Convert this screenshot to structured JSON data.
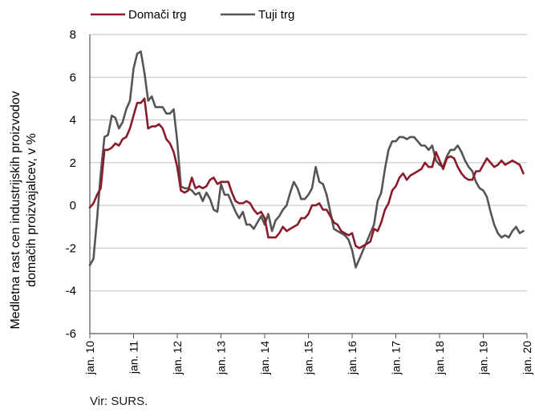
{
  "chart_data": {
    "type": "line",
    "ylabel_line1": "Medletna rast cen industrijskih proizvodov",
    "ylabel_line2": "domačih proizvajalcev, v %",
    "ylim": [
      -6,
      8
    ],
    "yticks": [
      "8",
      "6",
      "4",
      "2",
      "0",
      "-2",
      "-4",
      "-6"
    ],
    "x_range": [
      "2010-01",
      "2020-01"
    ],
    "xticks": [
      "jan. 10",
      "jan. 11",
      "jan. 12",
      "jan. 13",
      "jan. 14",
      "jan. 15",
      "jan. 16",
      "jan. 17",
      "jan. 18",
      "jan. 19",
      "jan. 20"
    ],
    "legend_position": "top-left",
    "grid": "horizontal",
    "series": [
      {
        "name": "Domači trg",
        "color": "#8b1a2b",
        "points": [
          [
            "2010-01",
            -0.1
          ],
          [
            "2010-02",
            0.1
          ],
          [
            "2010-03",
            0.5
          ],
          [
            "2010-04",
            0.8
          ],
          [
            "2010-05",
            2.6
          ],
          [
            "2010-06",
            2.6
          ],
          [
            "2010-07",
            2.7
          ],
          [
            "2010-08",
            2.9
          ],
          [
            "2010-09",
            2.8
          ],
          [
            "2010-10",
            3.1
          ],
          [
            "2010-11",
            3.2
          ],
          [
            "2010-12",
            3.6
          ],
          [
            "2011-01",
            4.2
          ],
          [
            "2011-02",
            4.8
          ],
          [
            "2011-03",
            4.8
          ],
          [
            "2011-04",
            5.0
          ],
          [
            "2011-05",
            3.6
          ],
          [
            "2011-06",
            3.7
          ],
          [
            "2011-07",
            3.7
          ],
          [
            "2011-08",
            3.8
          ],
          [
            "2011-09",
            3.6
          ],
          [
            "2011-10",
            3.1
          ],
          [
            "2011-11",
            2.9
          ],
          [
            "2011-12",
            2.5
          ],
          [
            "2012-01",
            1.8
          ],
          [
            "2012-02",
            0.7
          ],
          [
            "2012-03",
            0.6
          ],
          [
            "2012-04",
            0.7
          ],
          [
            "2012-05",
            1.3
          ],
          [
            "2012-06",
            0.8
          ],
          [
            "2012-07",
            0.9
          ],
          [
            "2012-08",
            0.8
          ],
          [
            "2012-09",
            0.9
          ],
          [
            "2012-10",
            1.2
          ],
          [
            "2012-11",
            1.3
          ],
          [
            "2012-12",
            1.0
          ],
          [
            "2013-01",
            1.1
          ],
          [
            "2013-02",
            1.1
          ],
          [
            "2013-03",
            1.1
          ],
          [
            "2013-04",
            0.6
          ],
          [
            "2013-05",
            0.2
          ],
          [
            "2013-06",
            0.1
          ],
          [
            "2013-07",
            0.1
          ],
          [
            "2013-08",
            0.2
          ],
          [
            "2013-09",
            0.1
          ],
          [
            "2013-10",
            -0.2
          ],
          [
            "2013-11",
            -0.4
          ],
          [
            "2013-12",
            -0.3
          ],
          [
            "2014-01",
            -0.6
          ],
          [
            "2014-02",
            -1.5
          ],
          [
            "2014-03",
            -1.5
          ],
          [
            "2014-04",
            -1.5
          ],
          [
            "2014-05",
            -1.3
          ],
          [
            "2014-06",
            -1.0
          ],
          [
            "2014-07",
            -1.2
          ],
          [
            "2014-08",
            -1.1
          ],
          [
            "2014-09",
            -1.0
          ],
          [
            "2014-10",
            -0.9
          ],
          [
            "2014-11",
            -0.6
          ],
          [
            "2014-12",
            -0.6
          ],
          [
            "2015-01",
            -0.4
          ],
          [
            "2015-02",
            0.0
          ],
          [
            "2015-03",
            0.0
          ],
          [
            "2015-04",
            0.1
          ],
          [
            "2015-05",
            -0.2
          ],
          [
            "2015-06",
            -0.2
          ],
          [
            "2015-07",
            -0.5
          ],
          [
            "2015-08",
            -0.8
          ],
          [
            "2015-09",
            -0.9
          ],
          [
            "2015-10",
            -1.2
          ],
          [
            "2015-11",
            -1.3
          ],
          [
            "2015-12",
            -1.4
          ],
          [
            "2016-01",
            -1.3
          ],
          [
            "2016-02",
            -1.9
          ],
          [
            "2016-03",
            -2.0
          ],
          [
            "2016-04",
            -1.9
          ],
          [
            "2016-05",
            -1.8
          ],
          [
            "2016-06",
            -1.7
          ],
          [
            "2016-07",
            -1.1
          ],
          [
            "2016-08",
            -1.2
          ],
          [
            "2016-09",
            -0.8
          ],
          [
            "2016-10",
            -0.2
          ],
          [
            "2016-11",
            0.1
          ],
          [
            "2016-12",
            0.7
          ],
          [
            "2017-01",
            0.9
          ],
          [
            "2017-02",
            1.3
          ],
          [
            "2017-03",
            1.5
          ],
          [
            "2017-04",
            1.2
          ],
          [
            "2017-05",
            1.4
          ],
          [
            "2017-06",
            1.5
          ],
          [
            "2017-07",
            1.6
          ],
          [
            "2017-08",
            1.7
          ],
          [
            "2017-09",
            2.0
          ],
          [
            "2017-10",
            1.8
          ],
          [
            "2017-11",
            1.8
          ],
          [
            "2017-12",
            2.5
          ],
          [
            "2018-01",
            2.1
          ],
          [
            "2018-02",
            1.7
          ],
          [
            "2018-03",
            2.2
          ],
          [
            "2018-04",
            2.3
          ],
          [
            "2018-05",
            2.2
          ],
          [
            "2018-06",
            1.8
          ],
          [
            "2018-07",
            1.5
          ],
          [
            "2018-08",
            1.3
          ],
          [
            "2018-09",
            1.2
          ],
          [
            "2018-10",
            1.2
          ],
          [
            "2018-11",
            1.6
          ],
          [
            "2018-12",
            1.6
          ],
          [
            "2019-01",
            1.9
          ],
          [
            "2019-02",
            2.2
          ],
          [
            "2019-03",
            2.0
          ],
          [
            "2019-04",
            1.8
          ],
          [
            "2019-05",
            1.9
          ],
          [
            "2019-06",
            2.1
          ],
          [
            "2019-07",
            1.9
          ],
          [
            "2019-08",
            2.0
          ],
          [
            "2019-09",
            2.1
          ],
          [
            "2019-10",
            2.0
          ],
          [
            "2019-11",
            1.9
          ],
          [
            "2019-12",
            1.5
          ]
        ]
      },
      {
        "name": "Tuji trg",
        "color": "#555555",
        "points": [
          [
            "2010-01",
            -2.8
          ],
          [
            "2010-02",
            -2.5
          ],
          [
            "2010-03",
            -0.6
          ],
          [
            "2010-04",
            1.5
          ],
          [
            "2010-05",
            3.2
          ],
          [
            "2010-06",
            3.3
          ],
          [
            "2010-07",
            4.2
          ],
          [
            "2010-08",
            4.1
          ],
          [
            "2010-09",
            3.6
          ],
          [
            "2010-10",
            3.9
          ],
          [
            "2010-11",
            4.5
          ],
          [
            "2010-12",
            4.9
          ],
          [
            "2011-01",
            6.4
          ],
          [
            "2011-02",
            7.1
          ],
          [
            "2011-03",
            7.2
          ],
          [
            "2011-04",
            6.2
          ],
          [
            "2011-05",
            4.9
          ],
          [
            "2011-06",
            5.1
          ],
          [
            "2011-07",
            4.6
          ],
          [
            "2011-08",
            4.6
          ],
          [
            "2011-09",
            4.6
          ],
          [
            "2011-10",
            4.3
          ],
          [
            "2011-11",
            4.3
          ],
          [
            "2011-12",
            4.5
          ],
          [
            "2012-01",
            3.0
          ],
          [
            "2012-02",
            0.9
          ],
          [
            "2012-03",
            0.8
          ],
          [
            "2012-04",
            0.8
          ],
          [
            "2012-05",
            0.7
          ],
          [
            "2012-06",
            0.5
          ],
          [
            "2012-07",
            0.6
          ],
          [
            "2012-08",
            0.2
          ],
          [
            "2012-09",
            0.6
          ],
          [
            "2012-10",
            0.3
          ],
          [
            "2012-11",
            -0.2
          ],
          [
            "2012-12",
            -0.3
          ],
          [
            "2013-01",
            1.0
          ],
          [
            "2013-02",
            0.5
          ],
          [
            "2013-03",
            0.5
          ],
          [
            "2013-04",
            0.1
          ],
          [
            "2013-05",
            -0.3
          ],
          [
            "2013-06",
            -0.6
          ],
          [
            "2013-07",
            -0.3
          ],
          [
            "2013-08",
            -0.9
          ],
          [
            "2013-09",
            -0.9
          ],
          [
            "2013-10",
            -1.1
          ],
          [
            "2013-11",
            -0.8
          ],
          [
            "2013-12",
            -0.5
          ],
          [
            "2014-01",
            -0.9
          ],
          [
            "2014-02",
            -0.4
          ],
          [
            "2014-03",
            -1.2
          ],
          [
            "2014-04",
            -0.7
          ],
          [
            "2014-05",
            -0.5
          ],
          [
            "2014-06",
            -0.2
          ],
          [
            "2014-07",
            0.0
          ],
          [
            "2014-08",
            0.6
          ],
          [
            "2014-09",
            1.1
          ],
          [
            "2014-10",
            0.8
          ],
          [
            "2014-11",
            0.3
          ],
          [
            "2014-12",
            0.3
          ],
          [
            "2015-01",
            0.5
          ],
          [
            "2015-02",
            0.8
          ],
          [
            "2015-03",
            1.8
          ],
          [
            "2015-04",
            1.1
          ],
          [
            "2015-05",
            1.0
          ],
          [
            "2015-06",
            0.5
          ],
          [
            "2015-07",
            -0.3
          ],
          [
            "2015-08",
            -1.1
          ],
          [
            "2015-09",
            -1.2
          ],
          [
            "2015-10",
            -1.3
          ],
          [
            "2015-11",
            -1.4
          ],
          [
            "2015-12",
            -1.6
          ],
          [
            "2016-01",
            -2.1
          ],
          [
            "2016-02",
            -2.9
          ],
          [
            "2016-03",
            -2.5
          ],
          [
            "2016-04",
            -2.1
          ],
          [
            "2016-05",
            -1.7
          ],
          [
            "2016-06",
            -1.3
          ],
          [
            "2016-07",
            -0.9
          ],
          [
            "2016-08",
            0.2
          ],
          [
            "2016-09",
            0.6
          ],
          [
            "2016-10",
            1.7
          ],
          [
            "2016-11",
            2.6
          ],
          [
            "2016-12",
            3.0
          ],
          [
            "2017-01",
            3.0
          ],
          [
            "2017-02",
            3.2
          ],
          [
            "2017-03",
            3.2
          ],
          [
            "2017-04",
            3.1
          ],
          [
            "2017-05",
            3.2
          ],
          [
            "2017-06",
            3.2
          ],
          [
            "2017-07",
            3.0
          ],
          [
            "2017-08",
            2.8
          ],
          [
            "2017-09",
            2.8
          ],
          [
            "2017-10",
            2.6
          ],
          [
            "2017-11",
            2.8
          ],
          [
            "2017-12",
            2.1
          ],
          [
            "2018-01",
            1.9
          ],
          [
            "2018-02",
            1.8
          ],
          [
            "2018-03",
            2.3
          ],
          [
            "2018-04",
            2.6
          ],
          [
            "2018-05",
            2.6
          ],
          [
            "2018-06",
            2.8
          ],
          [
            "2018-07",
            2.5
          ],
          [
            "2018-08",
            2.1
          ],
          [
            "2018-09",
            1.8
          ],
          [
            "2018-10",
            1.6
          ],
          [
            "2018-11",
            1.1
          ],
          [
            "2018-12",
            0.8
          ],
          [
            "2019-01",
            0.7
          ],
          [
            "2019-02",
            0.4
          ],
          [
            "2019-03",
            -0.3
          ],
          [
            "2019-04",
            -0.9
          ],
          [
            "2019-05",
            -1.3
          ],
          [
            "2019-06",
            -1.5
          ],
          [
            "2019-07",
            -1.4
          ],
          [
            "2019-08",
            -1.5
          ],
          [
            "2019-09",
            -1.2
          ],
          [
            "2019-10",
            -1.0
          ],
          [
            "2019-11",
            -1.3
          ],
          [
            "2019-12",
            -1.2
          ]
        ]
      }
    ]
  },
  "source": "Vir: SURS."
}
